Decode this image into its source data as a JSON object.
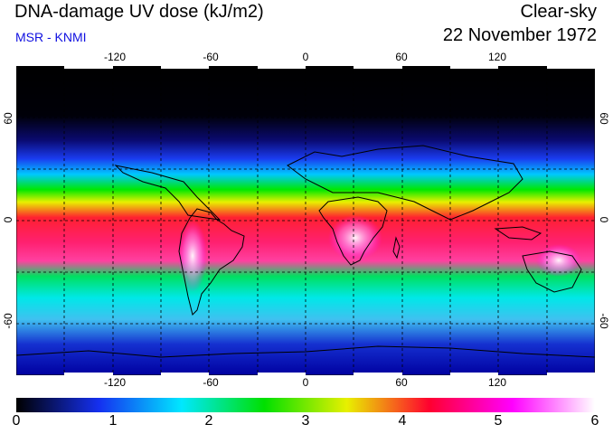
{
  "header": {
    "title": "DNA-damage UV dose (kJ/m2)",
    "subtitle": "MSR - KNMI",
    "mode": "Clear-sky",
    "date": "22 November 1972"
  },
  "map": {
    "lon_ticks": [
      "-120",
      "-60",
      "0",
      "60",
      "120"
    ],
    "lat_ticks": [
      "60",
      "0",
      "-60"
    ],
    "lon_range": [
      -180,
      180
    ],
    "lat_range": [
      -90,
      90
    ]
  },
  "colorbar": {
    "labels": [
      "0",
      "1",
      "2",
      "3",
      "4",
      "5",
      "6"
    ],
    "min": 0,
    "max": 6,
    "colors": [
      "#000000",
      "#1530f0",
      "#00e8ff",
      "#00e000",
      "#e8f000",
      "#ff0030",
      "#ff00ff",
      "#ffffff"
    ]
  }
}
